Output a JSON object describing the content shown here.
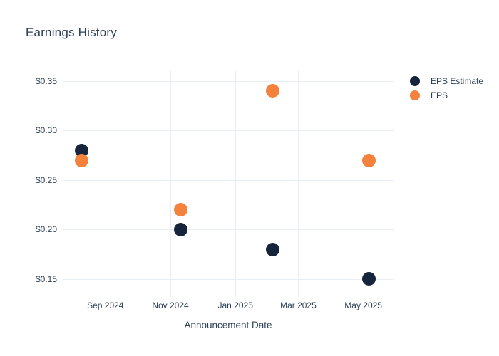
{
  "colors": {
    "text": "#2e4057",
    "grid": "#e9edf6",
    "background": "#ffffff",
    "eps_estimate": "#16243c",
    "eps": "#f4813c"
  },
  "chart_data": {
    "type": "scatter",
    "title": "Earnings History",
    "xlabel": "Announcement Date",
    "ylabel": "",
    "grid": true,
    "legend_position": "right-outside-top",
    "marker_size": 19,
    "x_range": [
      "2024-07-23",
      "2025-05-30"
    ],
    "y_range": [
      0.132,
      0.36
    ],
    "x_ticks": [
      {
        "date": "2024-09-01",
        "label": "Sep 2024"
      },
      {
        "date": "2024-11-01",
        "label": "Nov 2024"
      },
      {
        "date": "2025-01-01",
        "label": "Jan 2025"
      },
      {
        "date": "2025-03-01",
        "label": "Mar 2025"
      },
      {
        "date": "2025-05-01",
        "label": "May 2025"
      }
    ],
    "y_ticks": [
      {
        "value": 0.35,
        "label": "$0.35"
      },
      {
        "value": 0.3,
        "label": "$0.30"
      },
      {
        "value": 0.25,
        "label": "$0.25"
      },
      {
        "value": 0.2,
        "label": "$0.20"
      },
      {
        "value": 0.15,
        "label": "$0.15"
      }
    ],
    "series": [
      {
        "name": "EPS Estimate",
        "color": "#16243c",
        "points": [
          {
            "date": "2024-08-10",
            "value": 0.28
          },
          {
            "date": "2024-11-11",
            "value": 0.2
          },
          {
            "date": "2025-02-05",
            "value": 0.18
          },
          {
            "date": "2025-05-06",
            "value": 0.15
          }
        ]
      },
      {
        "name": "EPS",
        "color": "#f4813c",
        "points": [
          {
            "date": "2024-08-10",
            "value": 0.27
          },
          {
            "date": "2024-11-11",
            "value": 0.22
          },
          {
            "date": "2025-02-05",
            "value": 0.34
          },
          {
            "date": "2025-05-06",
            "value": 0.27
          }
        ]
      }
    ]
  }
}
